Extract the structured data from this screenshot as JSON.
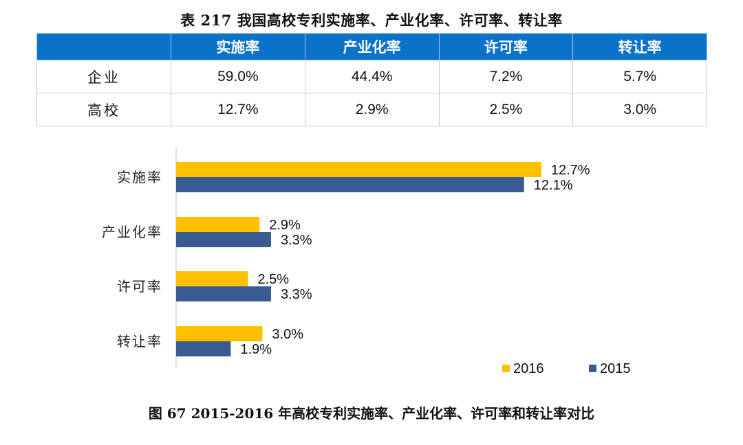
{
  "table": {
    "title": "表 217  我国高校专利实施率、产业化率、许可率、转让率",
    "headers": [
      "",
      "实施率",
      "产业化率",
      "许可率",
      "转让率"
    ],
    "rows": [
      {
        "label": "企业",
        "cells": [
          "59.0%",
          "44.4%",
          "7.2%",
          "5.7%"
        ]
      },
      {
        "label": "高校",
        "cells": [
          "12.7%",
          "2.9%",
          "2.5%",
          "3.0%"
        ]
      }
    ]
  },
  "figure": {
    "title": "图 67 2015-2016 年高校专利实施率、产业化率、许可率和转让率对比"
  },
  "colors": {
    "header_bg": "#0b72c9",
    "series_2016": "#ffc000",
    "series_2015": "#3a5a92"
  },
  "chart_data": {
    "type": "bar",
    "orientation": "horizontal",
    "categories": [
      "实施率",
      "产业化率",
      "许可率",
      "转让率"
    ],
    "series": [
      {
        "name": "2016",
        "values": [
          12.7,
          2.9,
          2.5,
          3.0
        ],
        "labels": [
          "12.7%",
          "2.9%",
          "2.5%",
          "3.0%"
        ]
      },
      {
        "name": "2015",
        "values": [
          12.1,
          3.3,
          3.3,
          1.9
        ],
        "labels": [
          "12.1%",
          "3.3%",
          "3.3%",
          "1.9%"
        ]
      }
    ],
    "xlim": [
      0,
      14
    ],
    "grid": false,
    "legend": "bottom-right",
    "title": "",
    "xlabel": "",
    "ylabel": ""
  }
}
